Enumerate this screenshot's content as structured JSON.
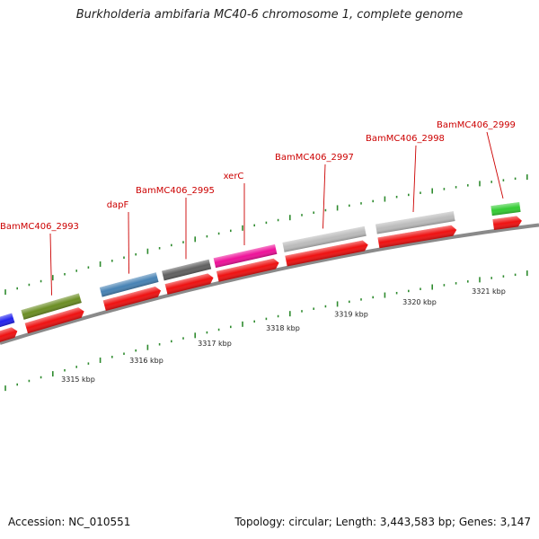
{
  "title": "Burkholderia ambifaria MC40-6 chromosome 1, complete genome",
  "footer": {
    "accession": "Accession: NC_010551",
    "topology": "Topology: circular; Length: 3,443,583 bp; Genes: 3,147"
  },
  "colors": {
    "backbone": "#8a8a8a",
    "tick": "#2e8b2e",
    "cds": "#ee1111",
    "label": "#cc0000"
  },
  "genes": [
    {
      "name": "",
      "color": "#2222ee"
    },
    {
      "name": "BamMC406_2993",
      "color": "#6b8e23"
    },
    {
      "name": "dapF",
      "color": "#4682b4"
    },
    {
      "name": "BamMC406_2995",
      "color": "#606060"
    },
    {
      "name": "xerC",
      "color": "#ee1199"
    },
    {
      "name": "BamMC406_2997",
      "color": "#bbbbbb"
    },
    {
      "name": "BamMC406_2998",
      "color": "#bbbbbb"
    },
    {
      "name": "BamMC406_2999",
      "color": "#33cc33"
    }
  ],
  "scale_ticks": [
    "3315 kbp",
    "3316 kbp",
    "3317 kbp",
    "3318 kbp",
    "3319 kbp",
    "3320 kbp",
    "3321 kbp"
  ]
}
